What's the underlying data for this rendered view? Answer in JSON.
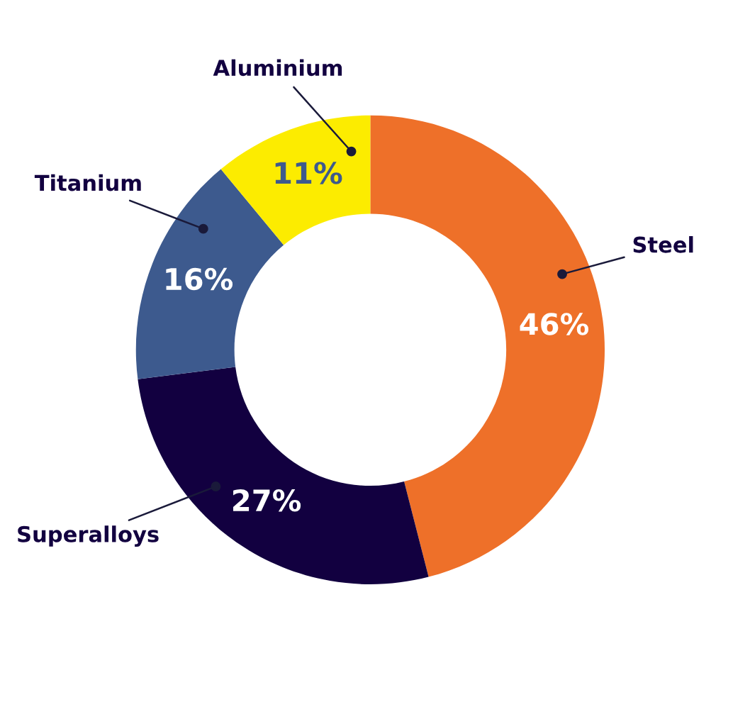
{
  "chart_data": {
    "type": "donut",
    "categories": [
      "Steel",
      "Superalloys",
      "Titanium",
      "Aluminium"
    ],
    "values": [
      46,
      27,
      16,
      11
    ],
    "colors": [
      "#ee7029",
      "#120040",
      "#3d5a8e",
      "#fcec00"
    ],
    "value_labels": [
      "46%",
      "27%",
      "16%",
      "11%"
    ]
  }
}
